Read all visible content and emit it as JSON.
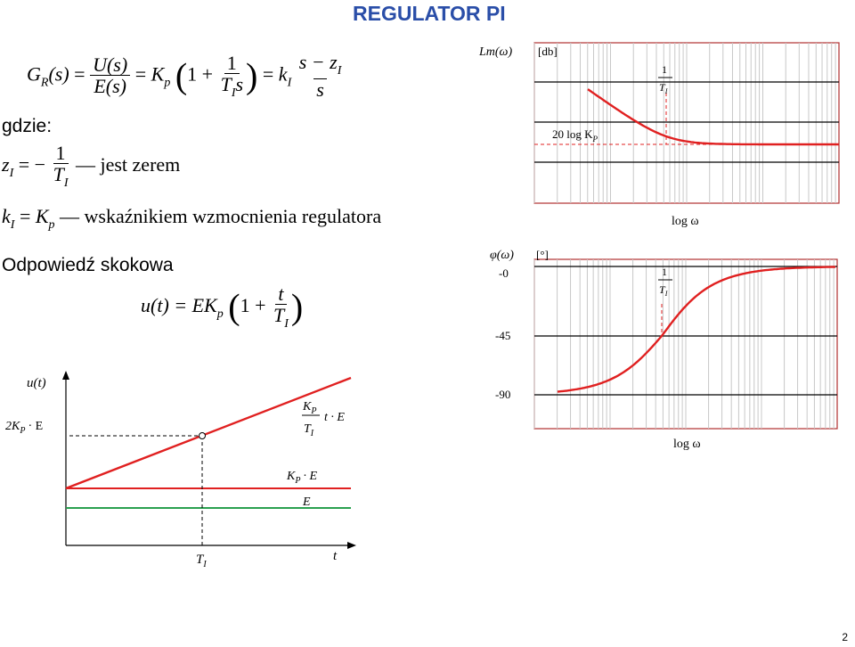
{
  "title": "REGULATOR PI",
  "formula": {
    "GR": "G",
    "GR_sub": "R",
    "of_s": "(s)",
    "eq": "=",
    "U": "U(s)",
    "E": "E(s)",
    "Kp": "K",
    "Kp_sub": "p",
    "one_plus": "1 +",
    "one": "1",
    "TI": "T",
    "TI_sub": "I",
    "s": "s",
    "kI": "k",
    "kI_sub": "I",
    "s_minus_zI": "s − z",
    "zI_sub": "I"
  },
  "gdzie": "gdzie:",
  "zero_line": {
    "z": "z",
    "z_sub": "I",
    "eq": "= −",
    "one": "1",
    "T": "T",
    "T_sub": "I",
    "dash": "—",
    "text": "jest zerem"
  },
  "gain_line": {
    "k": "k",
    "k_sub": "I",
    "eq": "=",
    "K": "K",
    "K_sub": "p",
    "dash": "—",
    "text": "wskaźnikiem wzmocnienia regulatora"
  },
  "step_heading": "Odpowiedź skokowa",
  "step_formula": {
    "u": "u(t) = EK",
    "sub": "p",
    "one_plus": "1 +",
    "t": "t",
    "T": "T",
    "T_sub": "I"
  },
  "step_chart": {
    "ylabel": "u(t)",
    "y_2KpE": "2K",
    "y_2KpE_sub": "P",
    "y_2KpE_rest": "· E",
    "slope_label": "K",
    "slope_label_sub": "P",
    "slope_den": "T",
    "slope_den_sub": "I",
    "slope_rest": "t · E",
    "KpE": "K",
    "KpE_sub": "P",
    "KpE_rest": "· E",
    "E": "E",
    "xtick": "T",
    "xtick_sub": "I",
    "xlabel": "t",
    "colors": {
      "ramp": "#e02020",
      "KpE": "#e02020",
      "E": "#2aa050"
    }
  },
  "bode_mag": {
    "ylabel": "Lm(ω)",
    "unit": "[db]",
    "asym_label": "20 log K",
    "asym_sub": "P",
    "corner_num": "1",
    "corner_den": "T",
    "corner_den_sub": "I",
    "xlabel": "log ω",
    "curve_color": "#e02020"
  },
  "bode_phase": {
    "ylabel": "φ(ω)",
    "unit": "[°]",
    "tick_0": "-0",
    "tick_45": "-45",
    "tick_90": "-90",
    "corner_num": "1",
    "corner_den": "T",
    "corner_den_sub": "I",
    "xlabel": "log ω",
    "curve_color": "#e02020"
  },
  "page_number": "2"
}
